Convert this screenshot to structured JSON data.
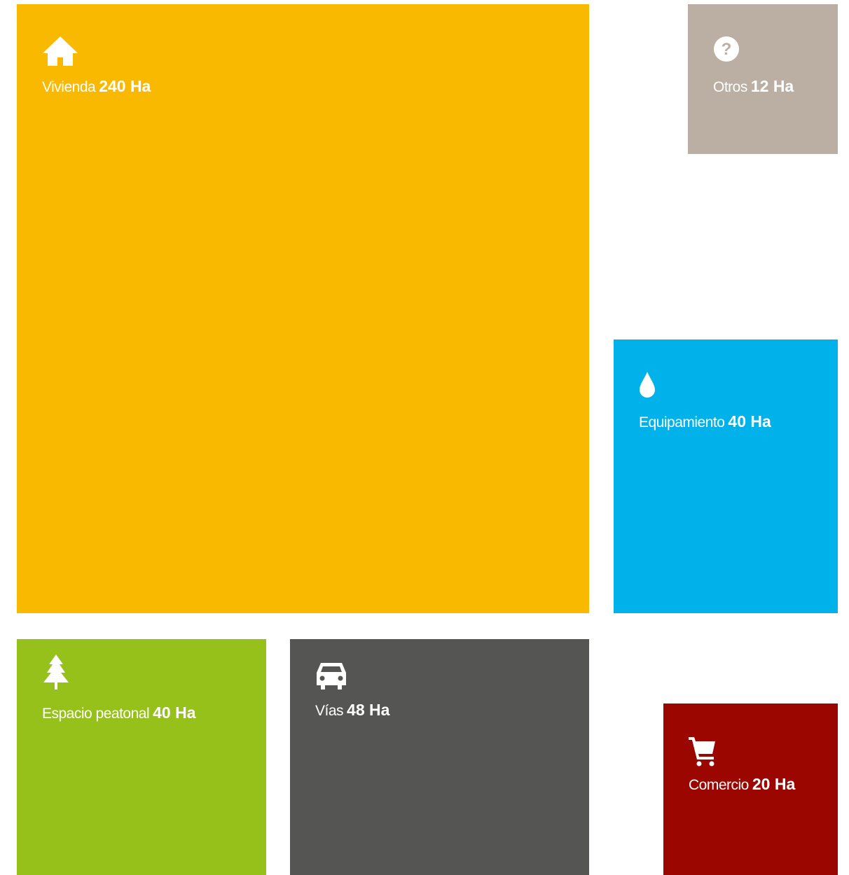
{
  "tiles": [
    {
      "name": "Vivienda",
      "amount": "240 Ha"
    },
    {
      "name": "Otros",
      "amount": "12 Ha"
    },
    {
      "name": "Equipamiento",
      "amount": "40 Ha"
    },
    {
      "name": "Espacio peatonal",
      "amount": "40 Ha"
    },
    {
      "name": "Vías",
      "amount": "48 Ha"
    },
    {
      "name": "Comercio",
      "amount": "20 Ha"
    }
  ]
}
